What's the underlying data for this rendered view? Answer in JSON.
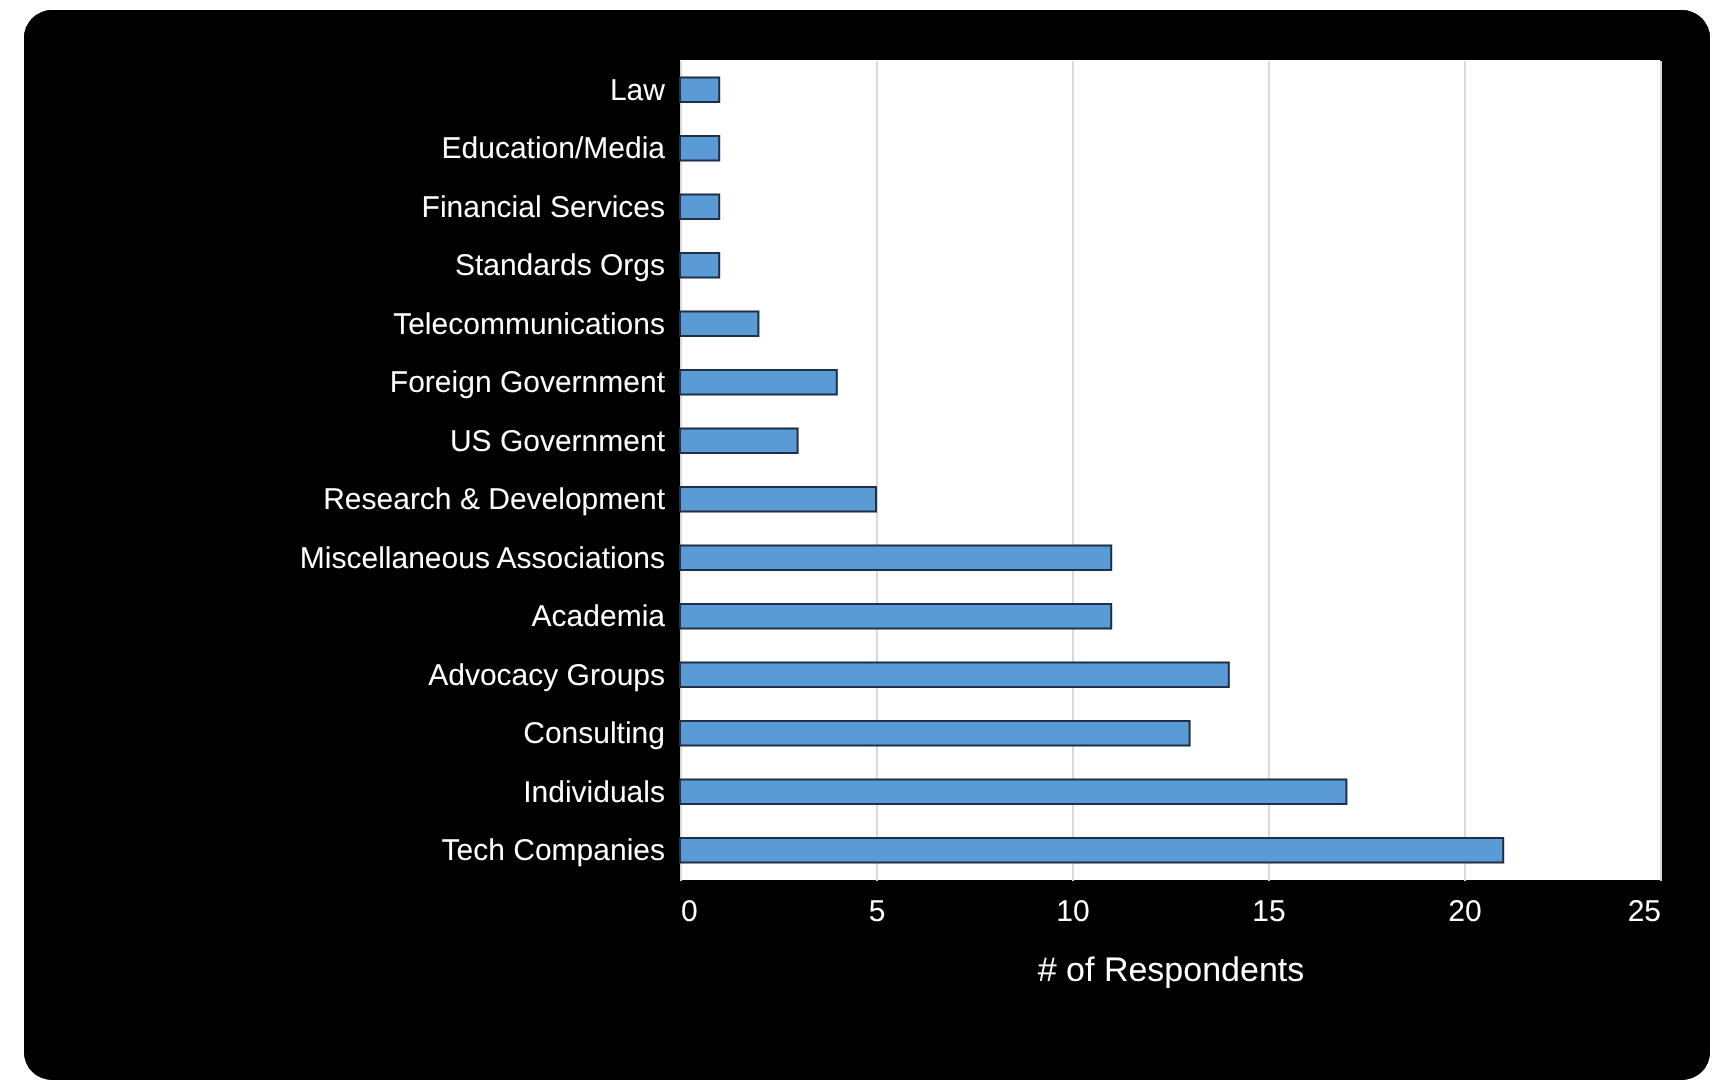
{
  "chart_data": {
    "type": "bar",
    "orientation": "horizontal",
    "xlabel": "# of Respondents",
    "categories": [
      "Law",
      "Education/Media",
      "Financial Services",
      "Standards Orgs",
      "Telecommunications",
      "Foreign Government",
      "US Government",
      "Research & Development",
      "Miscellaneous Associations",
      "Academia",
      "Advocacy Groups",
      "Consulting",
      "Individuals",
      "Tech Companies"
    ],
    "values": [
      1,
      1,
      1,
      1,
      2,
      4,
      3,
      5,
      11,
      11,
      14,
      13,
      17,
      21
    ],
    "color": "#5b9bd5",
    "xlim": [
      0,
      25
    ],
    "xticks": [
      0,
      5,
      10,
      15,
      20,
      25
    ],
    "grid": "x"
  }
}
